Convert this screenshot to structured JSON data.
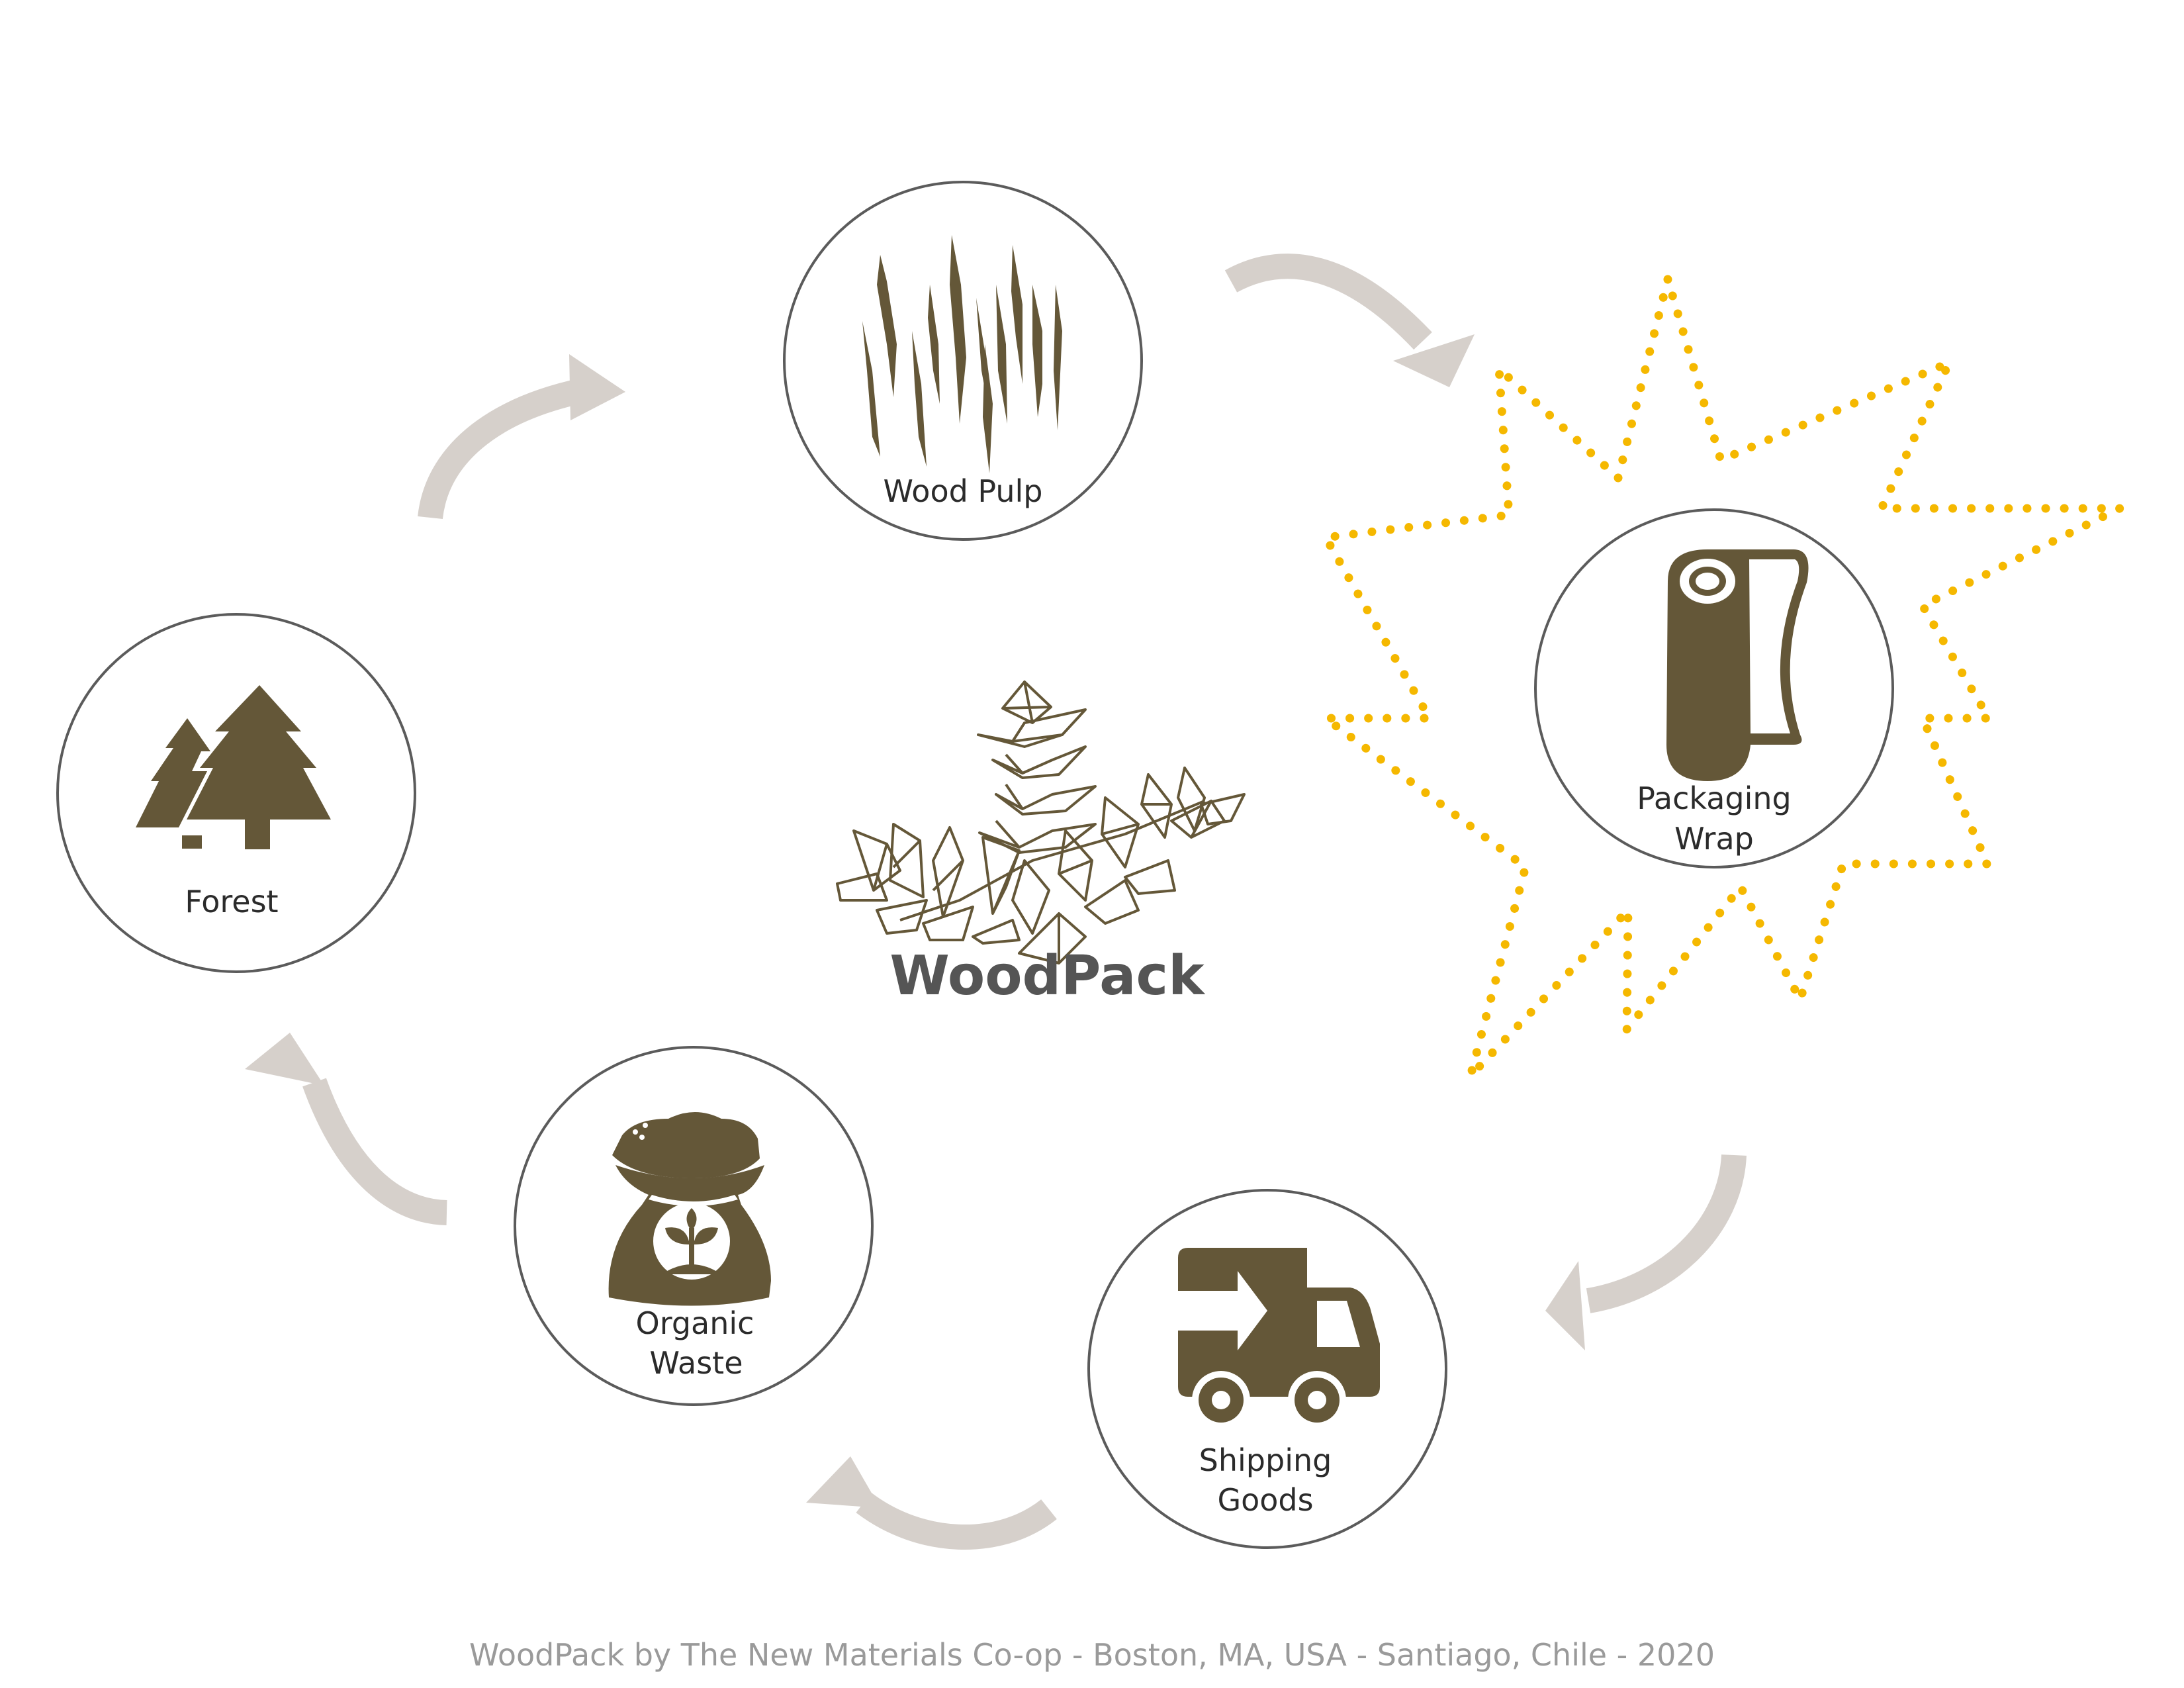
{
  "diagram": {
    "nodes": [
      {
        "id": "forest",
        "lines": [
          "Forest"
        ],
        "icon": "trees-icon"
      },
      {
        "id": "wood-pulp",
        "lines": [
          "Wood Pulp"
        ],
        "icon": "wood-fiber-icon"
      },
      {
        "id": "packaging-wrap",
        "lines": [
          "Packaging",
          "Wrap"
        ],
        "icon": "paper-roll-icon",
        "highlighted": true
      },
      {
        "id": "shipping-goods",
        "lines": [
          "Shipping",
          "Goods"
        ],
        "icon": "delivery-truck-icon"
      },
      {
        "id": "organic-waste",
        "lines": [
          "Organic",
          "Waste"
        ],
        "icon": "compost-sack-icon"
      }
    ],
    "flow": [
      "forest",
      "wood-pulp",
      "packaging-wrap",
      "shipping-goods",
      "organic-waste",
      "forest"
    ],
    "center": {
      "brand": "WoodPack",
      "icon": "leaf-branch-logo-icon"
    },
    "colors": {
      "icon": "#645738",
      "arrow": "#d6d0cb",
      "highlight": "#f5b800",
      "ring": "#5b5b5b",
      "brand_text": "#555555",
      "footer_text": "#9a9a9a"
    }
  },
  "footer": {
    "text": "WoodPack by The New Materials Co-op - Boston, MA, USA - Santiago, Chile - 2020"
  }
}
